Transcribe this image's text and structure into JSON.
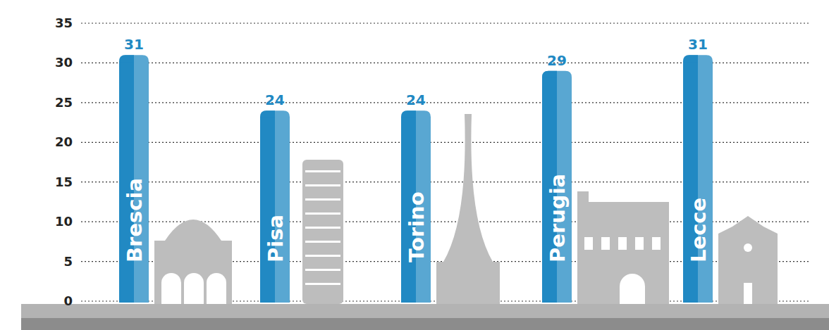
{
  "chart_data": {
    "type": "bar",
    "categories": [
      "Brescia",
      "Pisa",
      "Torino",
      "Perugia",
      "Lecce"
    ],
    "values": [
      31,
      24,
      24,
      29,
      31
    ],
    "color": "#2189c3",
    "ylim": [
      0,
      35
    ],
    "yticks": [
      0,
      5,
      10,
      15,
      20,
      25,
      30,
      35
    ],
    "grid": true,
    "data_labels": true
  }
}
